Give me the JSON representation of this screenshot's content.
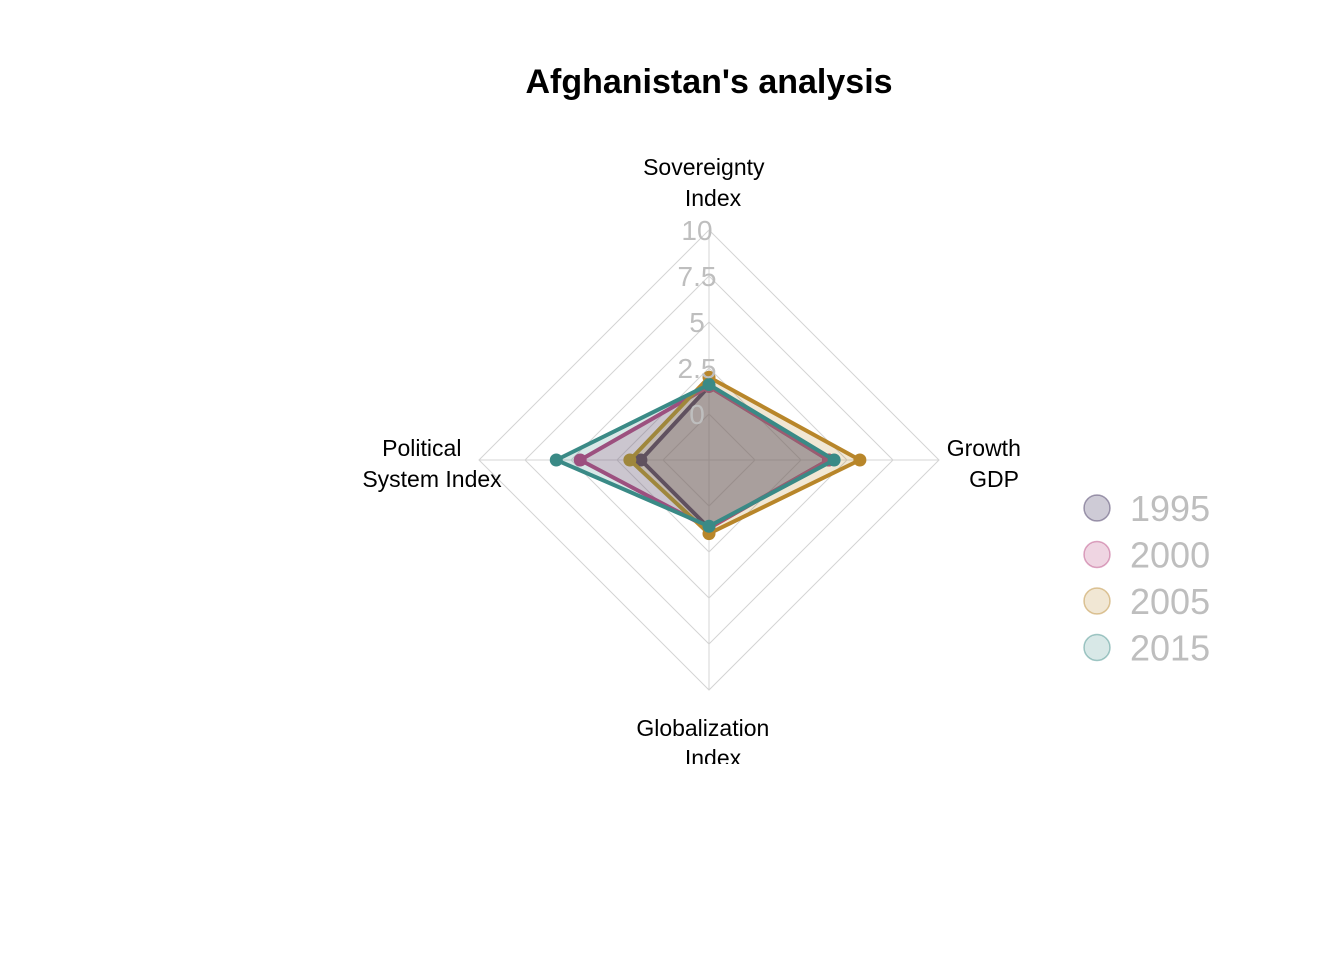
{
  "chart_data": {
    "type": "radar",
    "title": "Afghanistan's analysis",
    "axes": [
      [
        "Sovereignty",
        "Index"
      ],
      [
        "Growth",
        "GDP"
      ],
      [
        "Globalization",
        "Index"
      ],
      [
        "Political",
        "System Index"
      ]
    ],
    "ticks": [
      "0",
      "2.5",
      "5",
      "7.5",
      "10"
    ],
    "range": [
      -2.5,
      10
    ],
    "grid": true,
    "legend_position": "right",
    "series": [
      {
        "name": "1995",
        "color": "#3b2f5b",
        "fill": "rgba(59,47,91,0.25)",
        "values": [
          1.5,
          4.0,
          1.2,
          1.2
        ]
      },
      {
        "name": "2000",
        "color": "#b5417d",
        "fill": "rgba(181,65,125,0.22)",
        "values": [
          1.5,
          4.0,
          1.2,
          4.5
        ]
      },
      {
        "name": "2005",
        "color": "#b8862a",
        "fill": "rgba(184,134,42,0.20)",
        "values": [
          2.0,
          5.7,
          1.5,
          1.8
        ]
      },
      {
        "name": "2015",
        "color": "#3a8a86",
        "fill": "rgba(58,138,134,0.20)",
        "values": [
          1.6,
          4.3,
          1.1,
          5.8
        ]
      }
    ]
  }
}
